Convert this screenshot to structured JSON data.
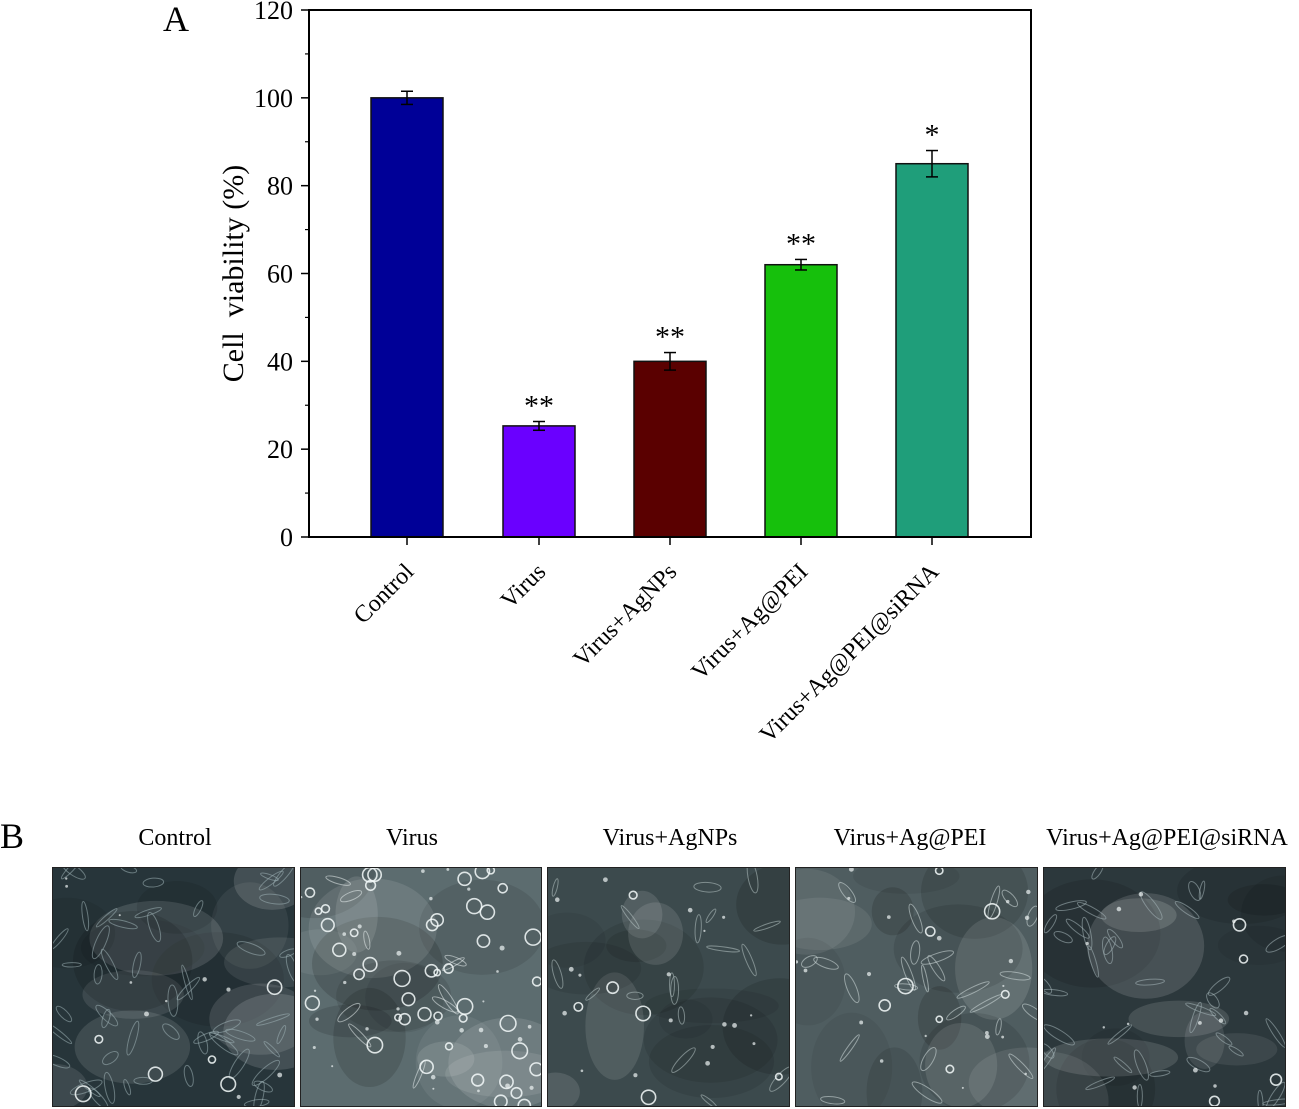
{
  "panel_a_letter": "A",
  "panel_b_letter": "B",
  "chart_data": {
    "type": "bar",
    "categories": [
      "Control",
      "Virus",
      "Virus+AgNPs",
      "Virus+Ag@PEI",
      "Virus+Ag@PEI@siRNA"
    ],
    "values": [
      100,
      25.3,
      40,
      62,
      85
    ],
    "errors": [
      1.5,
      1.0,
      2.0,
      1.2,
      3.0
    ],
    "significance": [
      "",
      "**",
      "**",
      "**",
      "*"
    ],
    "colors": [
      "#000097",
      "#6a00ff",
      "#5a0000",
      "#16c00c",
      "#1f9e7a"
    ],
    "title": "",
    "xlabel": "",
    "ylabel": "Cell  viability (%)",
    "ylim": [
      0,
      120
    ],
    "yticks": [
      0,
      20,
      40,
      60,
      80,
      100,
      120
    ],
    "grid": false
  },
  "panel_b": {
    "images": [
      {
        "label": "Control",
        "texture": "dense-elongated-cells"
      },
      {
        "label": "Virus",
        "texture": "rounded-detached-cells"
      },
      {
        "label": "Virus+AgNPs",
        "texture": "sparse-cells"
      },
      {
        "label": "Virus+Ag@PEI",
        "texture": "spread-cells"
      },
      {
        "label": "Virus+Ag@PEI@siRNA",
        "texture": "dense-spindle-cells"
      }
    ]
  }
}
